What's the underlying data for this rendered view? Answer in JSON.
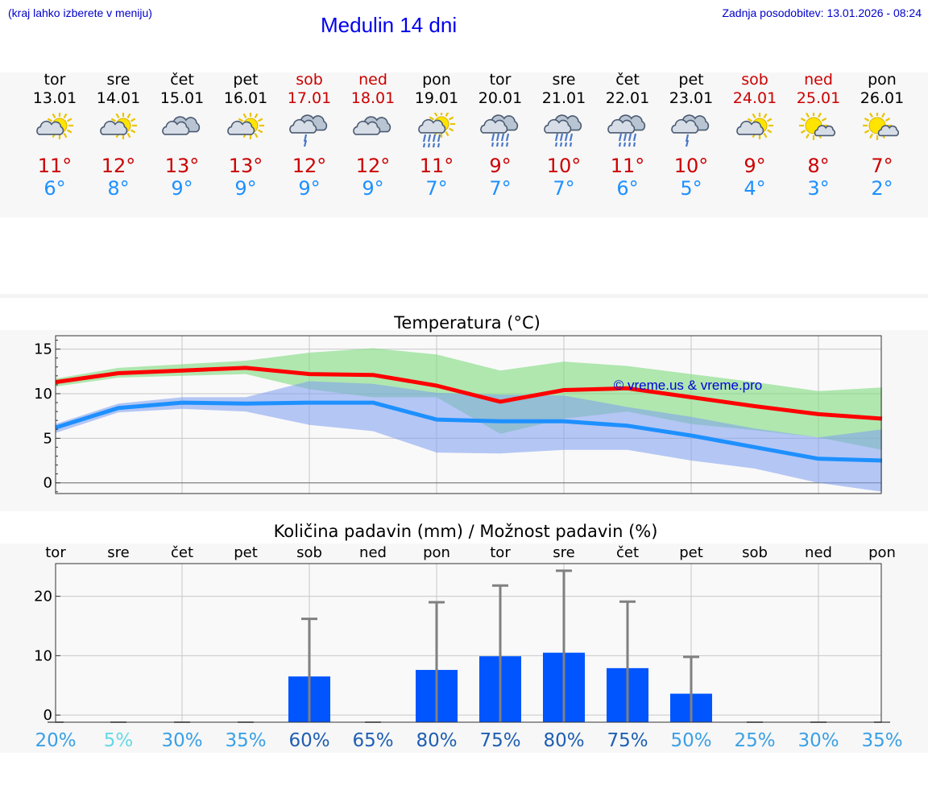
{
  "header": {
    "hint": "(kraj lahko izberete v meniju)",
    "title": "Medulin 14 dni",
    "updated": "Zadnja posodobitev: 13.01.2026 - 08:24"
  },
  "days": [
    {
      "name": "tor",
      "date": "13.01",
      "tmax": "11°",
      "tmin": "6°",
      "weekend": false,
      "icon": "sun-cloud-icon",
      "iconType": "sunCloud"
    },
    {
      "name": "sre",
      "date": "14.01",
      "tmax": "12°",
      "tmin": "8°",
      "weekend": false,
      "icon": "sun-cloud-icon",
      "iconType": "sunCloud"
    },
    {
      "name": "čet",
      "date": "15.01",
      "tmax": "13°",
      "tmin": "9°",
      "weekend": false,
      "icon": "cloud-icon",
      "iconType": "cloud"
    },
    {
      "name": "pet",
      "date": "16.01",
      "tmax": "13°",
      "tmin": "9°",
      "weekend": false,
      "icon": "sun-cloud-icon",
      "iconType": "sunCloud"
    },
    {
      "name": "sob",
      "date": "17.01",
      "tmax": "12°",
      "tmin": "9°",
      "weekend": true,
      "icon": "cloud-rain-icon",
      "iconType": "cloudRain1"
    },
    {
      "name": "ned",
      "date": "18.01",
      "tmax": "12°",
      "tmin": "9°",
      "weekend": true,
      "icon": "cloud-icon",
      "iconType": "cloud"
    },
    {
      "name": "pon",
      "date": "19.01",
      "tmax": "11°",
      "tmin": "7°",
      "weekend": false,
      "icon": "sun-cloud-rain-icon",
      "iconType": "sunCloudRain"
    },
    {
      "name": "tor",
      "date": "20.01",
      "tmax": "9°",
      "tmin": "7°",
      "weekend": false,
      "icon": "cloud-rain-icon",
      "iconType": "cloudRain"
    },
    {
      "name": "sre",
      "date": "21.01",
      "tmax": "10°",
      "tmin": "7°",
      "weekend": false,
      "icon": "cloud-rain-icon",
      "iconType": "cloudRain"
    },
    {
      "name": "čet",
      "date": "22.01",
      "tmax": "11°",
      "tmin": "6°",
      "weekend": false,
      "icon": "cloud-rain-icon",
      "iconType": "cloudRain"
    },
    {
      "name": "pet",
      "date": "23.01",
      "tmax": "10°",
      "tmin": "5°",
      "weekend": false,
      "icon": "cloud-rain-icon",
      "iconType": "cloudRain1"
    },
    {
      "name": "sob",
      "date": "24.01",
      "tmax": "9°",
      "tmin": "4°",
      "weekend": true,
      "icon": "sun-cloud-icon",
      "iconType": "sunCloud"
    },
    {
      "name": "ned",
      "date": "25.01",
      "tmax": "8°",
      "tmin": "3°",
      "weekend": true,
      "icon": "sun-small-cloud-icon",
      "iconType": "sunSmallCloud"
    },
    {
      "name": "pon",
      "date": "26.01",
      "tmax": "7°",
      "tmin": "2°",
      "weekend": false,
      "icon": "sun-small-cloud-icon",
      "iconType": "sunSmallCloud"
    }
  ],
  "colors": {
    "max": "#ff0000",
    "min": "#1e90ff",
    "maxBand": "#7ddb7d",
    "minBand": "#7b9cf0",
    "bar": "#0055ff",
    "whisker": "#808080",
    "weekend": "#cc0000"
  },
  "chart_data": [
    {
      "type": "line",
      "title": "Temperatura (°C)",
      "watermark": "© vreme.us & vreme.pro",
      "ylim": [
        -1.2,
        16.5
      ],
      "yticks": [
        0,
        5,
        10,
        15
      ],
      "x": [
        0,
        1,
        2,
        3,
        4,
        5,
        6,
        7,
        8,
        9,
        10,
        11,
        12,
        13
      ],
      "series": [
        {
          "name": "max",
          "values": [
            11.3,
            12.3,
            12.6,
            12.9,
            12.2,
            12.1,
            10.9,
            9.1,
            10.4,
            10.6,
            9.6,
            8.6,
            7.7,
            7.2
          ]
        },
        {
          "name": "min",
          "values": [
            6.2,
            8.4,
            9.0,
            8.9,
            9.0,
            9.0,
            7.1,
            6.9,
            6.9,
            6.4,
            5.3,
            4.0,
            2.7,
            2.5
          ]
        }
      ],
      "bands": [
        {
          "name": "max-range",
          "upper": [
            11.7,
            12.9,
            13.3,
            13.7,
            14.6,
            15.1,
            14.4,
            12.6,
            13.6,
            13.1,
            12.2,
            11.3,
            10.3,
            10.7
          ],
          "lower": [
            10.8,
            11.8,
            12.0,
            12.2,
            10.5,
            9.6,
            9.6,
            5.5,
            7.2,
            8.0,
            6.6,
            5.9,
            5.1,
            3.7
          ]
        },
        {
          "name": "min-range",
          "upper": [
            6.6,
            8.9,
            9.6,
            9.6,
            11.4,
            11.1,
            10.1,
            9.9,
            9.8,
            8.5,
            7.4,
            6.1,
            5.1,
            6.0
          ],
          "lower": [
            5.6,
            7.9,
            8.3,
            8.0,
            6.5,
            5.8,
            3.4,
            3.3,
            3.7,
            3.7,
            2.5,
            1.6,
            0.0,
            -1.0
          ]
        }
      ]
    },
    {
      "type": "bar",
      "title": "Količina padavin (mm) / Možnost padavin (%)",
      "categories": [
        "tor",
        "sre",
        "čet",
        "pet",
        "sob",
        "ned",
        "pon",
        "tor",
        "sre",
        "čet",
        "pet",
        "sob",
        "ned",
        "pon"
      ],
      "ylim": [
        -1.2,
        25.5
      ],
      "yticks": [
        0,
        10,
        20
      ],
      "values": [
        0,
        0,
        0,
        0,
        6.5,
        0,
        7.6,
        9.9,
        10.5,
        7.9,
        3.6,
        0,
        0,
        0
      ],
      "errorHigh": [
        0,
        0,
        0,
        0,
        16.2,
        0,
        19.0,
        21.8,
        24.3,
        19.1,
        9.8,
        0,
        0,
        0
      ],
      "probability": [
        "20%",
        "5%",
        "30%",
        "35%",
        "60%",
        "65%",
        "80%",
        "75%",
        "80%",
        "75%",
        "50%",
        "25%",
        "30%",
        "35%"
      ],
      "probabilityColors": [
        "#3aa0e6",
        "#66d8e6",
        "#3aa0e6",
        "#3aa0e6",
        "#1e5fb4",
        "#1e5fb4",
        "#1e5fb4",
        "#1e5fb4",
        "#1e5fb4",
        "#1e5fb4",
        "#3aa0e6",
        "#3aa0e6",
        "#3aa0e6",
        "#3aa0e6"
      ]
    }
  ]
}
